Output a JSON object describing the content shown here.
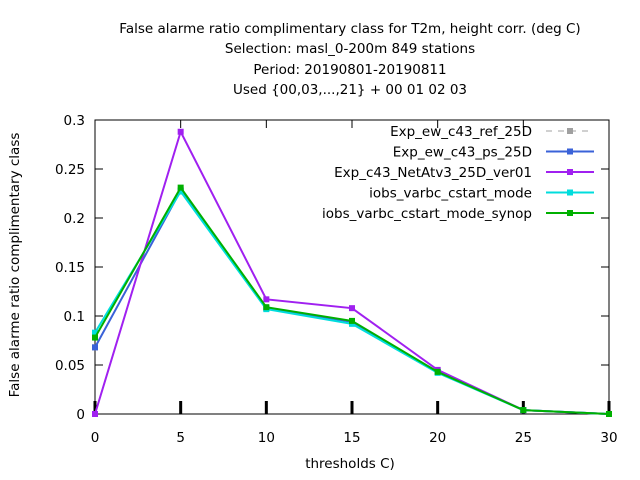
{
  "chart_data": {
    "type": "line",
    "title_lines": [
      "False alarme ratio complimentary class  for T2m, height corr. (deg C)",
      "Selection: masl_0-200m    849 stations",
      "Period: 20190801-20190811",
      "Used {00,03,...,21} + 00 01 02 03"
    ],
    "xlabel": "thresholds C)",
    "ylabel": "False alarme ratio complimentary class",
    "xlim": [
      0,
      30
    ],
    "ylim": [
      0,
      0.3
    ],
    "xticks": [
      "0",
      "5",
      "10",
      "15",
      "20",
      "25",
      "30"
    ],
    "yticks": [
      "0",
      "0.05",
      "0.1",
      "0.15",
      "0.2",
      "0.25",
      "0.3"
    ],
    "legend_position": "top-right",
    "grid": false,
    "x": [
      0,
      5,
      10,
      15,
      20,
      25,
      30
    ],
    "series": [
      {
        "name": "Exp_ew_c43_ref_25D",
        "color": "#a0a0a0",
        "dashed": true,
        "values": [
          0.068,
          0.228,
          0.108,
          0.094,
          0.043,
          0.004,
          0.0
        ]
      },
      {
        "name": "Exp_ew_c43_ps_25D",
        "color": "#3a62d8",
        "dashed": false,
        "values": [
          0.068,
          0.228,
          0.108,
          0.094,
          0.043,
          0.004,
          0.0
        ]
      },
      {
        "name": "Exp_c43_NetAtv3_25D_ver01",
        "color": "#a020f0",
        "dashed": false,
        "values": [
          0.0,
          0.288,
          0.117,
          0.108,
          0.045,
          0.004,
          0.0
        ]
      },
      {
        "name": "iobs_varbc_cstart_mode",
        "color": "#00dddd",
        "dashed": false,
        "values": [
          0.083,
          0.227,
          0.107,
          0.092,
          0.042,
          0.004,
          0.0
        ]
      },
      {
        "name": "iobs_varbc_cstart_mode_synop",
        "color": "#00b000",
        "dashed": false,
        "values": [
          0.078,
          0.231,
          0.109,
          0.095,
          0.043,
          0.004,
          0.0
        ]
      }
    ]
  }
}
